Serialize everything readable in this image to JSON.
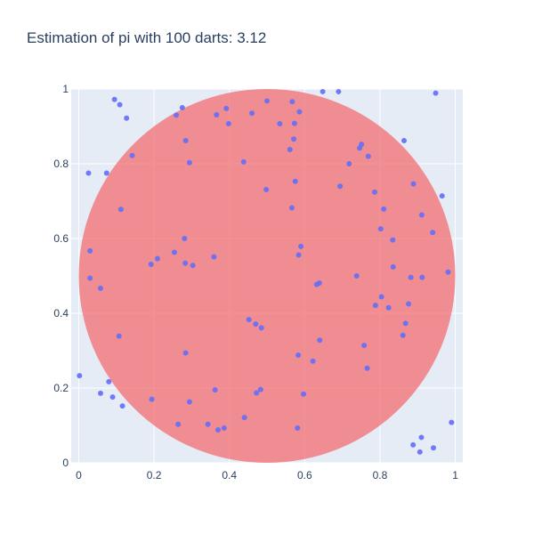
{
  "chart_data": {
    "type": "scatter",
    "title": "Estimation of pi with 100 darts: 3.12",
    "xlabel": "",
    "ylabel": "",
    "xlim": [
      -0.02,
      1.02
    ],
    "ylim": [
      0,
      1
    ],
    "grid": true,
    "x_ticks": [
      "0",
      "0.2",
      "0.4",
      "0.6",
      "0.8",
      "1"
    ],
    "y_ticks": [
      "0",
      "0.2",
      "0.4",
      "0.6",
      "0.8",
      "1"
    ],
    "circle": {
      "center": [
        0.5,
        0.5
      ],
      "radius": 0.5,
      "fill_color": "#f26d72",
      "opacity": 0.75
    },
    "point_color": "#636efa",
    "points": [
      [
        0.026,
        0.775
      ],
      [
        0.095,
        0.972
      ],
      [
        0.109,
        0.958
      ],
      [
        0.127,
        0.922
      ],
      [
        0.074,
        0.775
      ],
      [
        0.002,
        0.233
      ],
      [
        0.058,
        0.186
      ],
      [
        0.08,
        0.217
      ],
      [
        0.09,
        0.176
      ],
      [
        0.116,
        0.152
      ],
      [
        0.648,
        0.993
      ],
      [
        0.69,
        0.993
      ],
      [
        0.948,
        0.989
      ],
      [
        0.864,
        0.862
      ],
      [
        0.965,
        0.714
      ],
      [
        0.99,
        0.108
      ],
      [
        0.888,
        0.048
      ],
      [
        0.91,
        0.068
      ],
      [
        0.906,
        0.029
      ],
      [
        0.942,
        0.04
      ],
      [
        0.142,
        0.822
      ],
      [
        0.112,
        0.678
      ],
      [
        0.03,
        0.567
      ],
      [
        0.03,
        0.494
      ],
      [
        0.058,
        0.467
      ],
      [
        0.107,
        0.339
      ],
      [
        0.192,
        0.531
      ],
      [
        0.209,
        0.546
      ],
      [
        0.254,
        0.563
      ],
      [
        0.281,
        0.6
      ],
      [
        0.283,
        0.534
      ],
      [
        0.303,
        0.528
      ],
      [
        0.259,
        0.93
      ],
      [
        0.275,
        0.95
      ],
      [
        0.284,
        0.862
      ],
      [
        0.294,
        0.803
      ],
      [
        0.359,
        0.551
      ],
      [
        0.366,
        0.931
      ],
      [
        0.392,
        0.948
      ],
      [
        0.398,
        0.907
      ],
      [
        0.438,
        0.805
      ],
      [
        0.46,
        0.935
      ],
      [
        0.5,
        0.968
      ],
      [
        0.534,
        0.907
      ],
      [
        0.567,
        0.966
      ],
      [
        0.586,
        0.939
      ],
      [
        0.573,
        0.908
      ],
      [
        0.571,
        0.866
      ],
      [
        0.561,
        0.838
      ],
      [
        0.575,
        0.753
      ],
      [
        0.498,
        0.731
      ],
      [
        0.566,
        0.682
      ],
      [
        0.59,
        0.579
      ],
      [
        0.584,
        0.556
      ],
      [
        0.194,
        0.17
      ],
      [
        0.284,
        0.294
      ],
      [
        0.294,
        0.163
      ],
      [
        0.264,
        0.103
      ],
      [
        0.343,
        0.103
      ],
      [
        0.362,
        0.195
      ],
      [
        0.37,
        0.088
      ],
      [
        0.386,
        0.093
      ],
      [
        0.44,
        0.121
      ],
      [
        0.452,
        0.383
      ],
      [
        0.47,
        0.371
      ],
      [
        0.485,
        0.361
      ],
      [
        0.472,
        0.187
      ],
      [
        0.483,
        0.196
      ],
      [
        0.583,
        0.288
      ],
      [
        0.581,
        0.093
      ],
      [
        0.597,
        0.184
      ],
      [
        0.622,
        0.272
      ],
      [
        0.632,
        0.477
      ],
      [
        0.639,
        0.481
      ],
      [
        0.64,
        0.328
      ],
      [
        0.694,
        0.74
      ],
      [
        0.718,
        0.8
      ],
      [
        0.746,
        0.842
      ],
      [
        0.751,
        0.852
      ],
      [
        0.769,
        0.82
      ],
      [
        0.786,
        0.724
      ],
      [
        0.802,
        0.626
      ],
      [
        0.81,
        0.679
      ],
      [
        0.834,
        0.596
      ],
      [
        0.835,
        0.524
      ],
      [
        0.889,
        0.746
      ],
      [
        0.911,
        0.663
      ],
      [
        0.94,
        0.616
      ],
      [
        0.981,
        0.51
      ],
      [
        0.882,
        0.496
      ],
      [
        0.912,
        0.496
      ],
      [
        0.738,
        0.5
      ],
      [
        0.788,
        0.421
      ],
      [
        0.804,
        0.444
      ],
      [
        0.823,
        0.415
      ],
      [
        0.876,
        0.425
      ],
      [
        0.868,
        0.373
      ],
      [
        0.861,
        0.341
      ],
      [
        0.758,
        0.314
      ],
      [
        0.766,
        0.253
      ]
    ]
  }
}
